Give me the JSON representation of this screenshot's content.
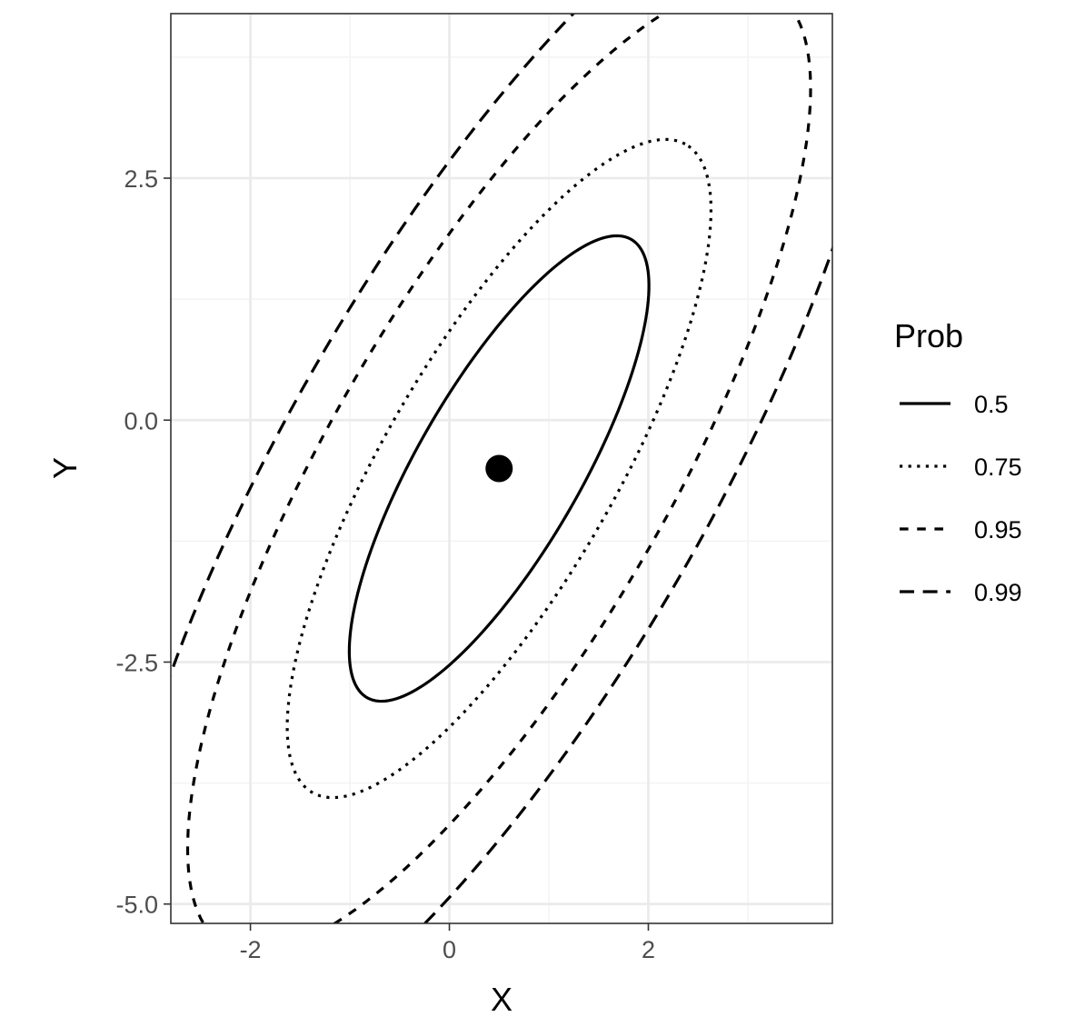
{
  "chart_data": {
    "type": "line",
    "subtype": "confidence-ellipses",
    "title": "",
    "xlabel": "X",
    "ylabel": "Y",
    "xlim": [
      -2.8,
      3.85
    ],
    "ylim": [
      -5.2,
      4.2
    ],
    "x_ticks": [
      -2,
      0,
      2
    ],
    "x_tick_labels": [
      "-2",
      "0",
      "2"
    ],
    "x_minor_gridlines": [
      -1,
      1,
      3
    ],
    "y_ticks": [
      -5.0,
      -2.5,
      0.0,
      2.5
    ],
    "y_tick_labels": [
      "-5.0",
      "-2.5",
      "0.0",
      "2.5"
    ],
    "y_minor_gridlines": [
      -3.75,
      -1.25,
      1.25,
      3.75
    ],
    "grid": true,
    "theme": "bw",
    "center_point": {
      "x": 0.5,
      "y": -0.5
    },
    "ellipse_parameters": {
      "center": [
        0.5,
        -0.5
      ],
      "angle_deg": 60.85,
      "major_sigma": 2.3055,
      "minor_sigma": 0.7015,
      "dimensions": 2
    },
    "legend": {
      "title": "Prob",
      "placement": "right",
      "entries": [
        {
          "label": "0.5",
          "linetype": "solid"
        },
        {
          "label": "0.75",
          "linetype": "dotted"
        },
        {
          "label": "0.95",
          "linetype": "dashed"
        },
        {
          "label": "0.99",
          "linetype": "longdash"
        }
      ]
    },
    "series": [
      {
        "name": "0.5",
        "level": 0.5,
        "linetype": "solid"
      },
      {
        "name": "0.75",
        "level": 0.75,
        "linetype": "dotted"
      },
      {
        "name": "0.95",
        "level": 0.95,
        "linetype": "dashed"
      },
      {
        "name": "0.99",
        "level": 0.99,
        "linetype": "longdash"
      }
    ],
    "colors": {
      "line": "#000000",
      "point": "#000000",
      "panel_border": "#333333",
      "grid_major": "#ebebeb",
      "grid_minor": "#f2f2f2",
      "tick_text": "#4d4d4d"
    }
  }
}
